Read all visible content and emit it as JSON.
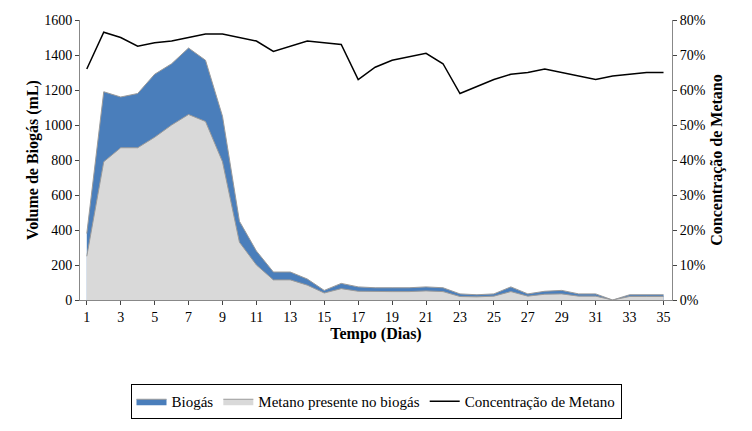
{
  "chart_data": {
    "type": "area",
    "x_label": "Tempo (Dias)",
    "y_label": "Volume de Biogás (mL)",
    "y2_label": "Concentração de Metano",
    "x": [
      1,
      2,
      3,
      4,
      5,
      6,
      7,
      8,
      9,
      10,
      11,
      12,
      13,
      14,
      15,
      16,
      17,
      18,
      19,
      20,
      21,
      22,
      23,
      24,
      25,
      26,
      27,
      28,
      29,
      30,
      31,
      32,
      33,
      34,
      35
    ],
    "xlim": [
      0.6,
      35.5
    ],
    "xticks": [
      1,
      3,
      5,
      7,
      9,
      11,
      13,
      15,
      17,
      19,
      21,
      23,
      25,
      27,
      29,
      31,
      33,
      35
    ],
    "ylim": [
      0,
      1600
    ],
    "yticks": [
      0,
      200,
      400,
      600,
      800,
      1000,
      1200,
      1400,
      1600
    ],
    "y2lim": [
      0,
      80
    ],
    "y2ticks": [
      {
        "value": 0,
        "label": "0%"
      },
      {
        "value": 10,
        "label": "10%"
      },
      {
        "value": 20,
        "label": "20%"
      },
      {
        "value": 30,
        "label": "30%"
      },
      {
        "value": 40,
        "label": "40%"
      },
      {
        "value": 50,
        "label": "50%"
      },
      {
        "value": 60,
        "label": "60%"
      },
      {
        "value": 70,
        "label": "70%"
      },
      {
        "value": 80,
        "label": "80%"
      }
    ],
    "grid": false,
    "legend": "bottom",
    "series": [
      {
        "name": "Biogás",
        "type": "area",
        "color": "#4a7ebb",
        "values": [
          380,
          1190,
          1160,
          1180,
          1290,
          1350,
          1440,
          1370,
          1050,
          450,
          280,
          160,
          160,
          120,
          55,
          95,
          75,
          70,
          70,
          70,
          75,
          70,
          35,
          30,
          35,
          75,
          35,
          50,
          55,
          35,
          35,
          0,
          30,
          30,
          30
        ]
      },
      {
        "name": "Metano presente no biogás",
        "type": "area",
        "color": "#d9d9d9",
        "values": [
          250,
          790,
          870,
          870,
          930,
          1000,
          1060,
          1020,
          790,
          330,
          200,
          115,
          115,
          85,
          40,
          65,
          50,
          47,
          48,
          48,
          52,
          48,
          20,
          18,
          22,
          48,
          22,
          33,
          35,
          22,
          22,
          0,
          20,
          20,
          20
        ]
      },
      {
        "name": "Concentração de Metano",
        "type": "line",
        "axis": "y2",
        "color": "#000000",
        "values": [
          66,
          76.5,
          75,
          72.5,
          73.5,
          74,
          75,
          76,
          76,
          75,
          74,
          71,
          72.5,
          74,
          73.5,
          73,
          63,
          66.5,
          68.5,
          69.5,
          70.5,
          67.5,
          59,
          61,
          63,
          64.5,
          65,
          66,
          65,
          64,
          63,
          64,
          64.5,
          65,
          65
        ]
      }
    ]
  }
}
